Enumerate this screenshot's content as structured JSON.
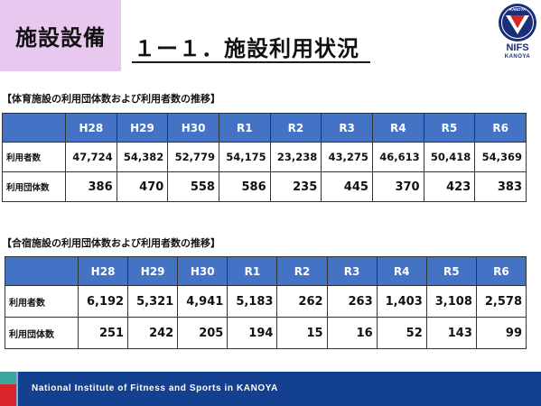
{
  "header": {
    "section_tag": "施設設備",
    "slide_title": "１ー１．施設利用状況"
  },
  "logo": {
    "emblem_text": "KANOYA",
    "name": "NIFS",
    "sub": "KANOYA"
  },
  "table1": {
    "heading": "【体育施設の利用団体数および利用者数の推移】",
    "columns": [
      "H28",
      "H29",
      "H30",
      "R1",
      "R2",
      "R3",
      "R4",
      "R5",
      "R6"
    ],
    "rows": [
      {
        "label": "利用者数",
        "values": [
          "47,724",
          "54,382",
          "52,779",
          "54,175",
          "23,238",
          "43,275",
          "46,613",
          "50,418",
          "54,369"
        ]
      },
      {
        "label": "利用団体数",
        "values": [
          "386",
          "470",
          "558",
          "586",
          "235",
          "445",
          "370",
          "423",
          "383"
        ]
      }
    ]
  },
  "table2": {
    "heading": "【合宿施設の利用団体数および利用者数の推移】",
    "columns": [
      "H28",
      "H29",
      "H30",
      "R1",
      "R2",
      "R3",
      "R4",
      "R5",
      "R6"
    ],
    "rows": [
      {
        "label": "利用者数",
        "values": [
          "6,192",
          "5,321",
          "4,941",
          "5,183",
          "262",
          "263",
          "1,403",
          "3,108",
          "2,578"
        ]
      },
      {
        "label": "利用団体数",
        "values": [
          "251",
          "242",
          "205",
          "194",
          "15",
          "16",
          "52",
          "143",
          "99"
        ]
      }
    ]
  },
  "footer": {
    "text": "National Institute of Fitness and Sports in KANOYA"
  },
  "colors": {
    "header_blue": "#4472c4",
    "footer_blue": "#13408f",
    "section_tag_bg": "#e8c8ee",
    "accent_teal": "#3aa69e",
    "accent_red": "#d8262b"
  }
}
